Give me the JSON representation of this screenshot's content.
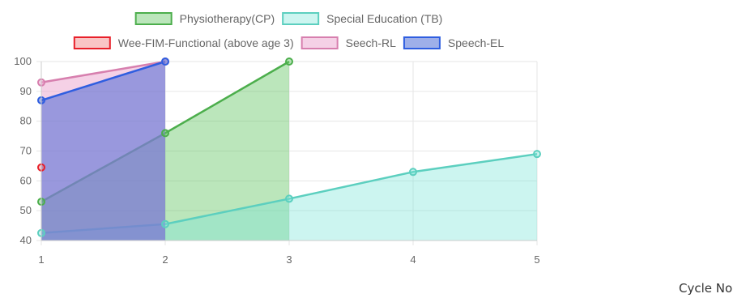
{
  "chart_data": {
    "type": "area",
    "x": [
      1,
      2,
      3,
      4,
      5
    ],
    "xlabel": "Cycle No",
    "ylabel": "",
    "xlim": [
      1,
      5
    ],
    "ylim": [
      40,
      100
    ],
    "y_ticks": [
      40,
      50,
      60,
      70,
      80,
      90,
      100
    ],
    "x_ticks": [
      1,
      2,
      3,
      4,
      5
    ],
    "grid": true,
    "legend_position": "top",
    "series": [
      {
        "name": "Physiotherapy(CP)",
        "x": [
          1,
          2,
          3
        ],
        "values": [
          53,
          76,
          100
        ],
        "color": "#4cae4c",
        "fill": "rgba(92,196,92,0.42)"
      },
      {
        "name": "Special Education (TB)",
        "x": [
          1,
          2,
          3,
          4,
          5
        ],
        "values": [
          42.5,
          45.5,
          54,
          63,
          69
        ],
        "color": "#5ccfbf",
        "fill": "rgba(120,228,215,0.38)"
      },
      {
        "name": "Wee-FIM-Functional (above age 3)",
        "x": [
          1
        ],
        "values": [
          64.5
        ],
        "color": "#e8202a",
        "fill": "rgba(240,110,110,0.4)"
      },
      {
        "name": "Seech-RL",
        "x": [
          1,
          2
        ],
        "values": [
          93,
          100
        ],
        "color": "#d77fae",
        "fill": "rgba(236,172,210,0.55)"
      },
      {
        "name": "Speech-EL",
        "x": [
          1,
          2
        ],
        "values": [
          87,
          100
        ],
        "color": "#2f5ee0",
        "fill": "rgba(62,96,212,0.5)"
      }
    ]
  }
}
